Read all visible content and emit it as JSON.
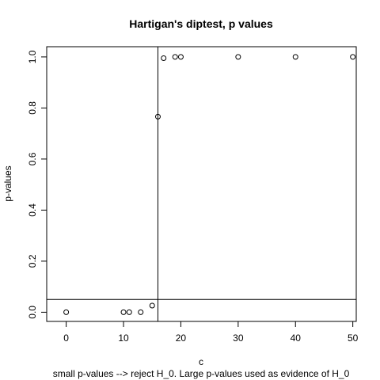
{
  "chart_data": {
    "type": "scatter",
    "title": "Hartigan's diptest, p values",
    "xlabel": "c",
    "ylabel": "p-values",
    "subtitle": "small  p-values --> reject H_0. Large p-values used as evidence of H_0",
    "xlim": [
      -3.4,
      50.6
    ],
    "ylim": [
      -0.036,
      1.04
    ],
    "xticks": [
      0,
      10,
      20,
      30,
      40,
      50
    ],
    "yticks": [
      0.0,
      0.2,
      0.4,
      0.6,
      0.8,
      1.0
    ],
    "ytick_labels": [
      "0.0",
      "0.2",
      "0.4",
      "0.6",
      "0.8",
      "1.0"
    ],
    "grid": false,
    "series": [
      {
        "marker": "open-circle",
        "x": [
          0,
          10,
          11,
          13,
          15,
          16,
          17,
          19,
          20,
          30,
          40,
          50
        ],
        "y": [
          0.0,
          0.0,
          0.0,
          0.0,
          0.026,
          0.766,
          0.995,
          1.0,
          1.0,
          1.0,
          1.0,
          1.0
        ]
      }
    ],
    "reference_lines": [
      {
        "orientation": "vertical",
        "value": 16
      },
      {
        "orientation": "horizontal",
        "value": 0.05
      }
    ],
    "colors": {
      "points": "#000000",
      "lines": "#000000",
      "background": "#ffffff"
    }
  }
}
